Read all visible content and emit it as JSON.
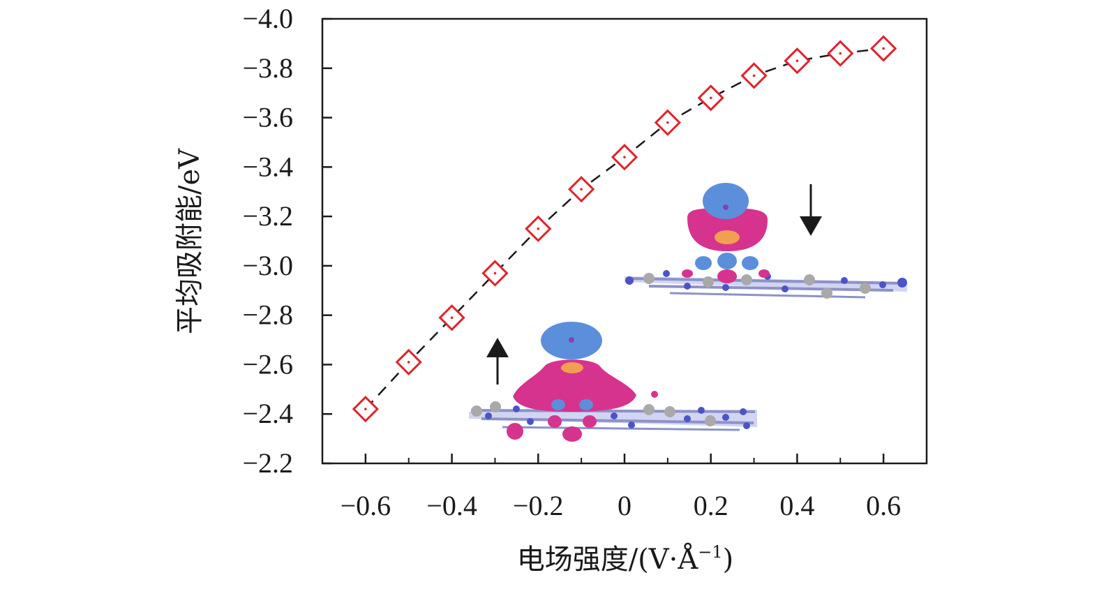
{
  "chart_data": {
    "type": "line",
    "title": "",
    "xlabel_main": "电场强度/(V·Å",
    "xlabel_sup": "−1",
    "xlabel_end": ")",
    "ylabel": "平均吸附能/eV",
    "x_ticks": [
      "−0.6",
      "−0.4",
      "−0.2",
      "0",
      "0.2",
      "0.4",
      "0.6"
    ],
    "x_tick_values": [
      -0.6,
      -0.4,
      -0.2,
      0,
      0.2,
      0.4,
      0.6
    ],
    "y_ticks": [
      "−4.0",
      "−3.8",
      "−3.6",
      "−3.4",
      "−3.2",
      "−3.0",
      "−2.8",
      "−2.6",
      "−2.4",
      "−2.2"
    ],
    "y_tick_values": [
      -4.0,
      -3.8,
      -3.6,
      -3.4,
      -3.2,
      -3.0,
      -2.8,
      -2.6,
      -2.4,
      -2.2
    ],
    "xlim": [
      -0.7,
      0.7
    ],
    "ylim": [
      -4.0,
      -2.2
    ],
    "y_inverted": true,
    "grid": false,
    "series": [
      {
        "name": "平均吸附能",
        "marker": "diamond",
        "line": "dashed",
        "color": "#e0232b",
        "line_color": "#1a1a1a",
        "x": [
          -0.6,
          -0.5,
          -0.4,
          -0.3,
          -0.2,
          -0.1,
          0.0,
          0.1,
          0.2,
          0.3,
          0.4,
          0.5,
          0.6
        ],
        "y": [
          -2.42,
          -2.61,
          -2.79,
          -2.97,
          -3.15,
          -3.31,
          -3.44,
          -3.58,
          -3.68,
          -3.77,
          -3.83,
          -3.86,
          -3.88
        ]
      }
    ],
    "annotations": [
      {
        "name": "field-up-arrow",
        "direction": "up"
      },
      {
        "name": "field-down-arrow",
        "direction": "down"
      }
    ]
  },
  "colors": {
    "axis": "#1a1a1a",
    "marker": "#e0232b",
    "charge_gain": "#5b8fdc",
    "charge_loss": "#d6338e",
    "atom_n": "#4b53c9",
    "atom_c": "#a9a9a9"
  }
}
